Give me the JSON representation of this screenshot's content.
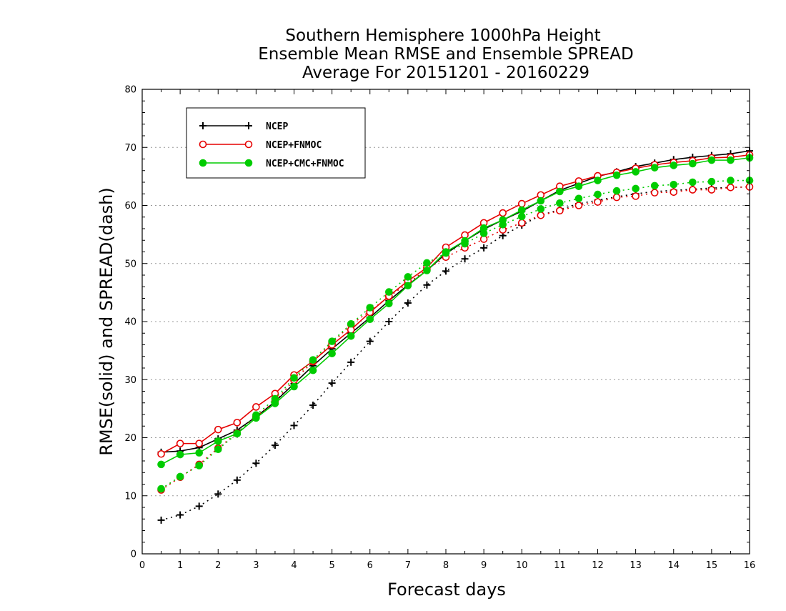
{
  "chart_data": {
    "type": "line",
    "title": [
      "Southern Hemisphere 1000hPa Height",
      "Ensemble Mean RMSE and Ensemble SPREAD",
      "Average For 20151201 - 20160229"
    ],
    "xlabel": "Forecast days",
    "ylabel": "RMSE(solid) and SPREAD(dash)",
    "xlim": [
      0,
      16
    ],
    "ylim": [
      0,
      80
    ],
    "xticks": [
      0,
      1,
      2,
      3,
      4,
      5,
      6,
      7,
      8,
      9,
      10,
      11,
      12,
      13,
      14,
      15,
      16
    ],
    "xtick_labels": [
      "0",
      "1",
      "2",
      "3",
      "4",
      "5",
      "6",
      "7",
      "8",
      "9",
      "10",
      "11",
      "12",
      "13",
      "14",
      "15",
      "16"
    ],
    "yticks": [
      0,
      10,
      20,
      30,
      40,
      50,
      60,
      70,
      80
    ],
    "ytick_labels": [
      "0",
      "10",
      "20",
      "30",
      "40",
      "50",
      "60",
      "70",
      "80"
    ],
    "grid": "horizontal dotted",
    "legend_placement": "top-left",
    "x": [
      0.5,
      1,
      1.5,
      2,
      2.5,
      3,
      3.5,
      4,
      4.5,
      5,
      5.5,
      6,
      6.5,
      7,
      7.5,
      8,
      8.5,
      9,
      9.5,
      10,
      10.5,
      11,
      11.5,
      12,
      12.5,
      13,
      13.5,
      14,
      14.5,
      15,
      15.5,
      16
    ],
    "series": [
      {
        "name": "NCEP",
        "color": "#000000",
        "marker": "plus",
        "rmse": [
          17.5,
          17.7,
          18.3,
          19.8,
          21.3,
          23.6,
          26.2,
          29.3,
          32.4,
          35.3,
          38.0,
          40.7,
          43.6,
          46.3,
          48.8,
          51.7,
          53.9,
          55.9,
          57.5,
          59.0,
          60.8,
          62.6,
          63.8,
          65.0,
          65.8,
          66.7,
          67.3,
          67.9,
          68.3,
          68.6,
          68.9,
          69.4
        ],
        "spread": [
          5.8,
          6.7,
          8.2,
          10.3,
          12.7,
          15.6,
          18.7,
          22.1,
          25.6,
          29.4,
          33.0,
          36.6,
          40.0,
          43.2,
          46.3,
          48.7,
          50.8,
          52.7,
          54.8,
          56.6,
          58.3,
          59.3,
          60.3,
          60.9,
          61.5,
          62.0,
          62.4,
          62.6,
          62.8,
          63.0,
          63.1,
          63.2
        ]
      },
      {
        "name": "NCEP+FNMOC",
        "color": "#e60000",
        "marker": "open-circle",
        "rmse": [
          17.2,
          19.0,
          19.0,
          21.4,
          22.6,
          25.3,
          27.6,
          30.8,
          33.2,
          36.0,
          38.6,
          41.6,
          44.4,
          47.0,
          49.3,
          52.8,
          54.9,
          57.0,
          58.7,
          60.3,
          61.8,
          63.3,
          64.2,
          65.1,
          65.7,
          66.4,
          67.0,
          67.4,
          67.7,
          68.2,
          68.3,
          68.7
        ],
        "spread": [
          11.0,
          13.2,
          15.4,
          18.2,
          20.8,
          23.6,
          26.3,
          29.9,
          33.1,
          36.3,
          39.5,
          41.8,
          44.3,
          46.6,
          49.0,
          51.1,
          52.7,
          54.2,
          55.8,
          57.0,
          58.3,
          59.1,
          60.0,
          60.6,
          61.4,
          61.6,
          62.2,
          62.3,
          62.7,
          62.7,
          63.1,
          63.2
        ]
      },
      {
        "name": "NCEP+CMC+FNMOC",
        "color": "#00cc00",
        "marker": "filled-circle",
        "rmse": [
          15.4,
          17.1,
          17.4,
          19.4,
          20.7,
          23.4,
          25.9,
          28.8,
          31.6,
          34.5,
          37.5,
          40.4,
          43.1,
          46.2,
          48.8,
          52.0,
          53.9,
          56.1,
          57.5,
          59.2,
          60.8,
          62.4,
          63.3,
          64.3,
          65.2,
          65.8,
          66.5,
          66.9,
          67.2,
          67.8,
          67.8,
          68.2
        ],
        "spread": [
          11.2,
          13.3,
          15.2,
          18.0,
          20.7,
          23.9,
          26.7,
          30.3,
          33.4,
          36.6,
          39.6,
          42.4,
          45.1,
          47.7,
          50.1,
          51.8,
          53.4,
          55.2,
          56.7,
          58.1,
          59.4,
          60.4,
          61.2,
          61.9,
          62.5,
          62.9,
          63.4,
          63.6,
          64.0,
          64.1,
          64.3,
          64.3
        ]
      }
    ]
  }
}
